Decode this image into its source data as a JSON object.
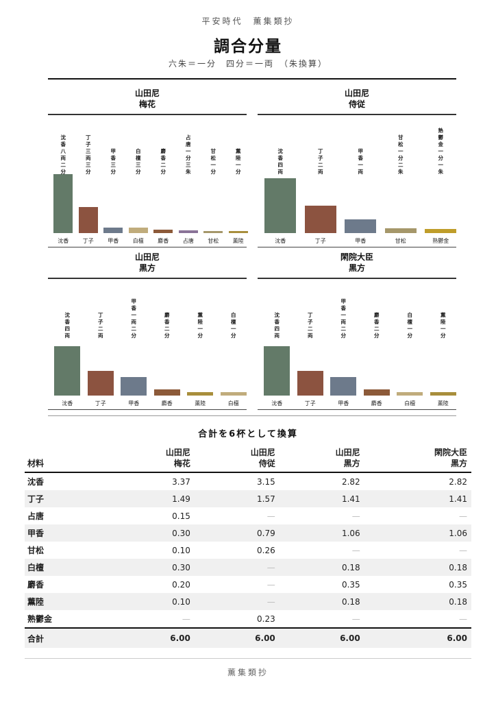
{
  "header": {
    "supertitle": "平安時代　薫集類抄",
    "title": "調合分量",
    "subtitle": "六朱＝一分　四分＝一両　（朱換算）"
  },
  "chart_data": [
    {
      "type": "bar",
      "title_line1": "山田尼",
      "title_line2": "梅花",
      "categories": [
        "沈香",
        "丁子",
        "甲香",
        "白檀",
        "麝香",
        "占唐",
        "甘松",
        "薫陸"
      ],
      "values": [
        3.37,
        1.49,
        0.3,
        0.3,
        0.2,
        0.15,
        0.1,
        0.1
      ],
      "colors": [
        "#637a68",
        "#8c5340",
        "#6d7a8b",
        "#c0ac7c",
        "#8c5a39",
        "#8a7398",
        "#a5976a",
        "#a88e3c"
      ],
      "vlabels": [
        "沈香八両二分",
        "丁子三両三分",
        "甲香三分",
        "白檀三分",
        "麝香二分",
        "占唐一分三朱",
        "甘松一分",
        "薫陸一分"
      ]
    },
    {
      "type": "bar",
      "title_line1": "山田尼",
      "title_line2": "侍従",
      "categories": [
        "沈香",
        "丁子",
        "甲香",
        "甘松",
        "熟鬱金"
      ],
      "values": [
        3.15,
        1.57,
        0.79,
        0.26,
        0.23
      ],
      "colors": [
        "#637a68",
        "#8c5340",
        "#6d7a8b",
        "#a5976a",
        "#bf9d2a"
      ],
      "vlabels": [
        "沈香四両",
        "丁子二両",
        "甲香一両",
        "甘松一分二朱",
        "熟鬱金一分一朱"
      ]
    },
    {
      "type": "bar",
      "title_line1": "山田尼",
      "title_line2": "黒方",
      "categories": [
        "沈香",
        "丁子",
        "甲香",
        "麝香",
        "薫陸",
        "白檀"
      ],
      "values": [
        2.82,
        1.41,
        1.06,
        0.35,
        0.18,
        0.18
      ],
      "colors": [
        "#637a68",
        "#8c5340",
        "#6d7a8b",
        "#8c5a39",
        "#a88e3c",
        "#c0ac7c"
      ],
      "vlabels": [
        "沈香四両",
        "丁子二両",
        "甲香一両二分",
        "麝香二分",
        "薫陸一分",
        "白檀一分"
      ]
    },
    {
      "type": "bar",
      "title_line1": "閑院大臣",
      "title_line2": "黒方",
      "categories": [
        "沈香",
        "丁子",
        "甲香",
        "麝香",
        "白檀",
        "薫陸"
      ],
      "values": [
        2.82,
        1.41,
        1.06,
        0.35,
        0.18,
        0.18
      ],
      "colors": [
        "#637a68",
        "#8c5340",
        "#6d7a8b",
        "#8c5a39",
        "#c0ac7c",
        "#a88e3c"
      ],
      "vlabels": [
        "沈香四両",
        "丁子二両",
        "甲香一両二分",
        "麝香二分",
        "白檀一分",
        "薫陸一分"
      ]
    }
  ],
  "table": {
    "title": "合計を6杯として換算",
    "corner": "材料",
    "columns": [
      {
        "line1": "山田尼",
        "line2": "梅花"
      },
      {
        "line1": "山田尼",
        "line2": "侍従"
      },
      {
        "line1": "山田尼",
        "line2": "黒方"
      },
      {
        "line1": "閑院大臣",
        "line2": "黒方"
      }
    ],
    "rows": [
      {
        "name": "沈香",
        "cells": [
          "3.37",
          "3.15",
          "2.82",
          "2.82"
        ]
      },
      {
        "name": "丁子",
        "cells": [
          "1.49",
          "1.57",
          "1.41",
          "1.41"
        ]
      },
      {
        "name": "占唐",
        "cells": [
          "0.15",
          "—",
          "—",
          "—"
        ]
      },
      {
        "name": "甲香",
        "cells": [
          "0.30",
          "0.79",
          "1.06",
          "1.06"
        ]
      },
      {
        "name": "甘松",
        "cells": [
          "0.10",
          "0.26",
          "—",
          "—"
        ]
      },
      {
        "name": "白檀",
        "cells": [
          "0.30",
          "—",
          "0.18",
          "0.18"
        ]
      },
      {
        "name": "麝香",
        "cells": [
          "0.20",
          "—",
          "0.35",
          "0.35"
        ]
      },
      {
        "name": "薫陸",
        "cells": [
          "0.10",
          "—",
          "0.18",
          "0.18"
        ]
      },
      {
        "name": "熟鬱金",
        "cells": [
          "—",
          "0.23",
          "—",
          "—"
        ]
      }
    ],
    "total": {
      "name": "合計",
      "cells": [
        "6.00",
        "6.00",
        "6.00",
        "6.00"
      ]
    }
  },
  "footer": "薫集類抄"
}
